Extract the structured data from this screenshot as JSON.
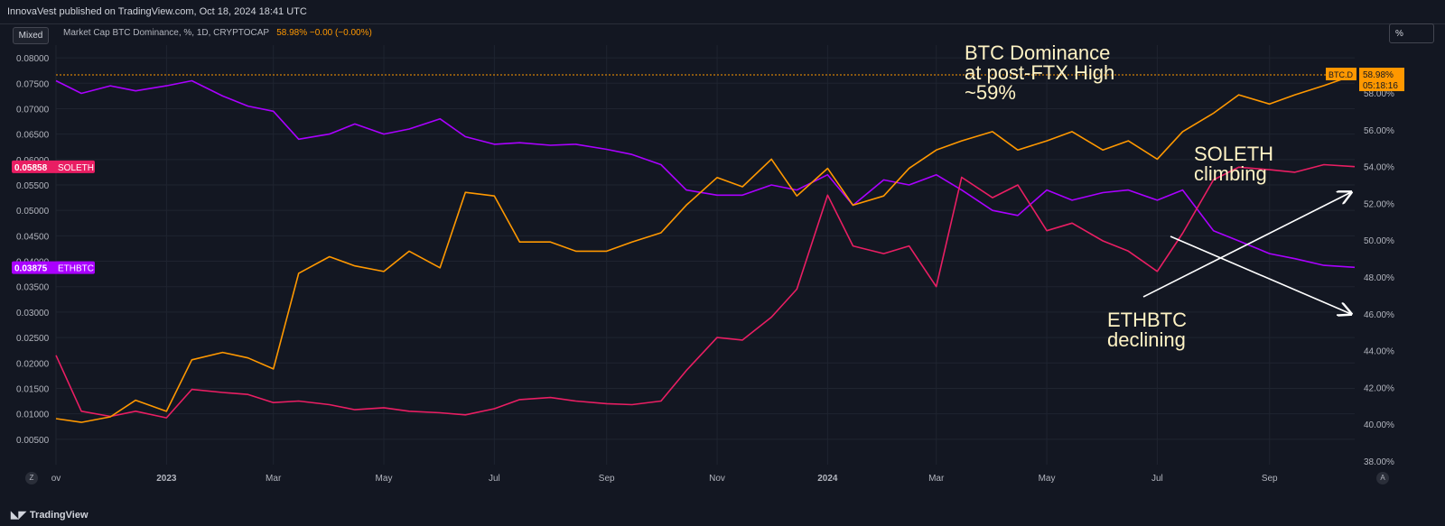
{
  "header": {
    "publish_line": "InnovaVest published on TradingView.com, Oct 18, 2024 18:41 UTC"
  },
  "toolbar": {
    "mode_label": "Mixed",
    "scale_label": "%"
  },
  "legend": {
    "symbol_text": "Market Cap BTC Dominance, %, 1D, CRYPTOCAP",
    "value_text": "58.98%  −0.00 (−0.00%)"
  },
  "footer": {
    "brand": "TradingView",
    "left_corner": "Z",
    "right_corner": "A"
  },
  "colors": {
    "background": "#131722",
    "grid": "#1f2430",
    "btc_d": "#ff9800",
    "soleth": "#e91e63",
    "ethbtc": "#aa00ff",
    "annotation": "#fff3c4",
    "arrow": "#ffffff"
  },
  "chart_data": {
    "type": "line",
    "x_tick_labels": [
      "ov",
      "2023",
      "Mar",
      "May",
      "Jul",
      "Sep",
      "Nov",
      "2024",
      "Mar",
      "May",
      "Jul",
      "Sep"
    ],
    "x": [
      "2022-11-01",
      "2022-11-15",
      "2022-12-01",
      "2022-12-15",
      "2023-01-01",
      "2023-01-15",
      "2023-02-01",
      "2023-02-15",
      "2023-03-01",
      "2023-03-15",
      "2023-04-01",
      "2023-04-15",
      "2023-05-01",
      "2023-05-15",
      "2023-06-01",
      "2023-06-15",
      "2023-07-01",
      "2023-07-15",
      "2023-08-01",
      "2023-08-15",
      "2023-09-01",
      "2023-09-15",
      "2023-10-01",
      "2023-10-15",
      "2023-11-01",
      "2023-11-15",
      "2023-12-01",
      "2023-12-15",
      "2024-01-01",
      "2024-01-15",
      "2024-02-01",
      "2024-02-15",
      "2024-03-01",
      "2024-03-15",
      "2024-04-01",
      "2024-04-15",
      "2024-05-01",
      "2024-05-15",
      "2024-06-01",
      "2024-06-15",
      "2024-07-01",
      "2024-07-15",
      "2024-08-01",
      "2024-08-15",
      "2024-09-01",
      "2024-09-15",
      "2024-10-01",
      "2024-10-18"
    ],
    "left_axis": {
      "ticks": [
        "0.08000",
        "0.07500",
        "0.07000",
        "0.06500",
        "0.06000",
        "0.05500",
        "0.05000",
        "0.04500",
        "0.04000",
        "0.03500",
        "0.03000",
        "0.02500",
        "0.02000",
        "0.01500",
        "0.01000",
        "0.00500"
      ],
      "ylim": [
        0.0,
        0.0825
      ]
    },
    "right_axis": {
      "ticks": [
        "58.00%",
        "56.00%",
        "54.00%",
        "52.00%",
        "50.00%",
        "48.00%",
        "46.00%",
        "44.00%",
        "42.00%",
        "40.00%",
        "38.00%"
      ],
      "ylim": [
        37.8,
        60.6
      ]
    },
    "series": [
      {
        "name": "ETHBTC",
        "axis": "left",
        "last_label": "0.03875",
        "values": [
          0.0755,
          0.073,
          0.0745,
          0.0735,
          0.0745,
          0.0755,
          0.0725,
          0.0705,
          0.0695,
          0.064,
          0.065,
          0.067,
          0.065,
          0.066,
          0.068,
          0.0645,
          0.063,
          0.0633,
          0.0628,
          0.063,
          0.062,
          0.061,
          0.059,
          0.054,
          0.053,
          0.053,
          0.055,
          0.054,
          0.057,
          0.051,
          0.056,
          0.055,
          0.057,
          0.054,
          0.05,
          0.049,
          0.054,
          0.052,
          0.0535,
          0.054,
          0.052,
          0.054,
          0.046,
          0.044,
          0.0415,
          0.0405,
          0.0392,
          0.0388
        ]
      },
      {
        "name": "SOLETH",
        "axis": "left",
        "last_label": "0.05858",
        "values": [
          0.0215,
          0.0105,
          0.0095,
          0.0105,
          0.0092,
          0.0148,
          0.0142,
          0.0138,
          0.0122,
          0.0125,
          0.0118,
          0.0108,
          0.0112,
          0.0105,
          0.0102,
          0.0098,
          0.011,
          0.0128,
          0.0132,
          0.0125,
          0.012,
          0.0118,
          0.0125,
          0.0185,
          0.025,
          0.0245,
          0.029,
          0.0345,
          0.053,
          0.043,
          0.0415,
          0.043,
          0.035,
          0.0565,
          0.0525,
          0.055,
          0.046,
          0.0475,
          0.044,
          0.042,
          0.038,
          0.0455,
          0.056,
          0.0585,
          0.058,
          0.0575,
          0.059,
          0.0586
        ]
      },
      {
        "name": "BTC.D",
        "axis": "right",
        "last_label": "58.98%",
        "countdown": "05:18:16",
        "values": [
          40.3,
          40.1,
          40.4,
          41.3,
          40.7,
          43.5,
          43.9,
          43.6,
          43.0,
          48.2,
          49.1,
          48.6,
          48.3,
          49.4,
          48.5,
          52.6,
          52.4,
          49.9,
          49.9,
          49.4,
          49.4,
          49.9,
          50.4,
          51.9,
          53.4,
          52.9,
          54.4,
          52.4,
          53.9,
          51.9,
          52.4,
          53.9,
          54.9,
          55.4,
          55.9,
          54.9,
          55.4,
          55.9,
          54.9,
          55.4,
          54.4,
          55.9,
          56.9,
          57.9,
          57.4,
          57.9,
          58.4,
          58.98
        ]
      }
    ],
    "annotations": [
      "BTC Dominance\nat post-FTX High\n~59%",
      "SOLETH\nclimbing",
      "ETHBTC\ndeclining"
    ]
  }
}
